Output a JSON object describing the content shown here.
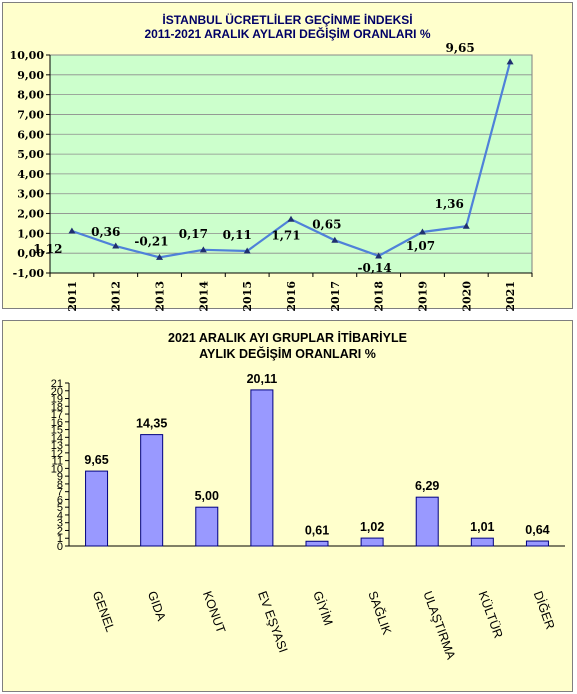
{
  "chart_data": [
    {
      "type": "line",
      "title": "İSTANBUL ÜCRETLİLER GEÇİNME İNDEKSİ",
      "subtitle": "2011-2021 ARALIK AYLARI DEĞİŞİM  ORANLARI %",
      "x": [
        "2011",
        "2012",
        "2013",
        "2014",
        "2015",
        "2016",
        "2017",
        "2018",
        "2019",
        "2020",
        "2021"
      ],
      "series": [
        {
          "values": [
            1.12,
            0.36,
            -0.21,
            0.17,
            0.11,
            1.71,
            0.65,
            -0.14,
            1.07,
            1.36,
            9.65
          ]
        }
      ],
      "data_labels": [
        "1,12",
        "0,36",
        "-0,21",
        "0,17",
        "0,11",
        "1,71",
        "0,65",
        "-0,14",
        "1,07",
        "1,36",
        "9,65"
      ],
      "y_tick_labels": [
        "-1,00",
        "0,00",
        "1,00",
        "2,00",
        "3,00",
        "4,00",
        "5,00",
        "6,00",
        "7,00",
        "8,00",
        "9,00",
        "10,00"
      ],
      "ylim": [
        -1,
        10
      ],
      "grid": true,
      "colors": {
        "plot_bg": "#ccffcc",
        "line": "#4f81d9",
        "marker": "#1f2f6f",
        "panel_bg": "#ffffcc",
        "title": "#000066"
      }
    },
    {
      "type": "bar",
      "title": "2021 ARALIK AYI  GRUPLAR İTİBARİYLE",
      "subtitle": "AYLIK DEĞİŞİM  ORANLARI  %",
      "categories": [
        "GENEL",
        "GIDA",
        "KONUT",
        "EV EŞYASI",
        "GİYİM",
        "SAĞLIK",
        "ULAŞTIRMA",
        "KÜLTÜR",
        "DİĞER"
      ],
      "values": [
        9.65,
        14.35,
        5.0,
        20.11,
        0.61,
        1.02,
        6.29,
        1.01,
        0.64
      ],
      "data_labels": [
        "9,65",
        "14,35",
        "5,00",
        "20,11",
        "0,61",
        "1,02",
        "6,29",
        "1,01",
        "0,64"
      ],
      "y_tick_labels": [
        "0",
        "1",
        "2",
        "3",
        "4",
        "5",
        "6",
        "7",
        "8",
        "9",
        "10",
        "11",
        "12",
        "13",
        "14",
        "15",
        "16",
        "17",
        "18",
        "19",
        "20",
        "21"
      ],
      "ylim": [
        0,
        21
      ],
      "grid": false,
      "colors": {
        "bar_fill": "#9999ff",
        "bar_stroke": "#000080",
        "panel_bg": "#ffffcc"
      }
    }
  ]
}
